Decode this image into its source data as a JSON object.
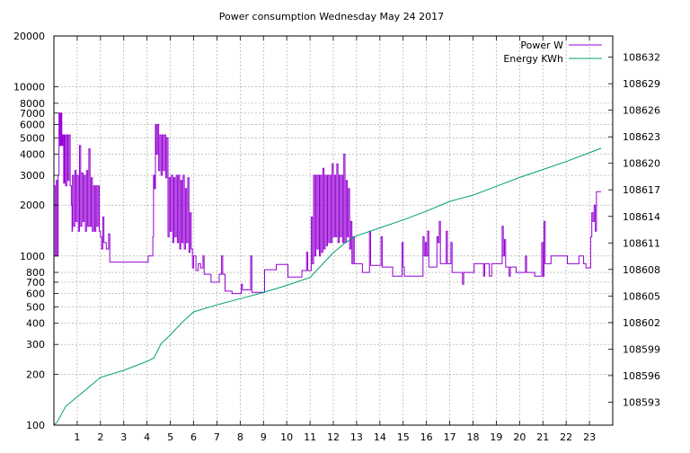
{
  "chart_data": {
    "type": "line",
    "title": "Power consumption Wednesday May 24 2017",
    "xlabel": "",
    "ylabel": "",
    "y2label": "",
    "xlim": [
      0,
      24
    ],
    "ylim": [
      100,
      20000
    ],
    "yscale": "log",
    "y2lim": [
      108590.4,
      108634.4
    ],
    "x_ticks": [
      1,
      2,
      3,
      4,
      5,
      6,
      7,
      8,
      9,
      10,
      11,
      12,
      13,
      14,
      15,
      16,
      17,
      18,
      19,
      20,
      21,
      22,
      23
    ],
    "y_ticks": [
      {
        "v": 100,
        "label": "100"
      },
      {
        "v": 200,
        "label": "200"
      },
      {
        "v": 300,
        "label": "300"
      },
      {
        "v": 400,
        "label": "400"
      },
      {
        "v": 500,
        "label": "500"
      },
      {
        "v": 600,
        "label": "600"
      },
      {
        "v": 700,
        "label": "700"
      },
      {
        "v": 800,
        "label": "800"
      },
      {
        "v": 1000,
        "label": "1000"
      },
      {
        "v": 2000,
        "label": "2000"
      },
      {
        "v": 3000,
        "label": "3000"
      },
      {
        "v": 4000,
        "label": "4000"
      },
      {
        "v": 5000,
        "label": "5000"
      },
      {
        "v": 6000,
        "label": "6000"
      },
      {
        "v": 7000,
        "label": "7000"
      },
      {
        "v": 8000,
        "label": "8000"
      },
      {
        "v": 10000,
        "label": "10000"
      },
      {
        "v": 20000,
        "label": "20000"
      }
    ],
    "y2_ticks": [
      108593,
      108596,
      108599,
      108602,
      108605,
      108608,
      108611,
      108614,
      108617,
      108620,
      108623,
      108626,
      108629,
      108632
    ],
    "grid": true,
    "legend_position": "top-right",
    "series": [
      {
        "name": "Power W",
        "color": "#9400d3",
        "axis": "left",
        "points": [
          [
            0,
            2600
          ],
          [
            0.05,
            1000
          ],
          [
            0.1,
            2800
          ],
          [
            0.15,
            1000
          ],
          [
            0.18,
            3000
          ],
          [
            0.22,
            7000
          ],
          [
            0.26,
            4500
          ],
          [
            0.3,
            7000
          ],
          [
            0.34,
            4500
          ],
          [
            0.38,
            5200
          ],
          [
            0.42,
            2700
          ],
          [
            0.46,
            5200
          ],
          [
            0.5,
            2600
          ],
          [
            0.55,
            5200
          ],
          [
            0.6,
            2800
          ],
          [
            0.65,
            5200
          ],
          [
            0.7,
            2600
          ],
          [
            0.75,
            2000
          ],
          [
            0.78,
            1400
          ],
          [
            0.8,
            3000
          ],
          [
            0.85,
            1500
          ],
          [
            0.9,
            3200
          ],
          [
            0.95,
            1600
          ],
          [
            1.0,
            3000
          ],
          [
            1.05,
            1400
          ],
          [
            1.1,
            4500
          ],
          [
            1.15,
            1500
          ],
          [
            1.2,
            3100
          ],
          [
            1.25,
            1600
          ],
          [
            1.3,
            3000
          ],
          [
            1.35,
            1400
          ],
          [
            1.4,
            3200
          ],
          [
            1.45,
            1500
          ],
          [
            1.5,
            4300
          ],
          [
            1.55,
            1500
          ],
          [
            1.6,
            2900
          ],
          [
            1.65,
            1400
          ],
          [
            1.7,
            2600
          ],
          [
            1.75,
            1400
          ],
          [
            1.8,
            2600
          ],
          [
            1.85,
            1500
          ],
          [
            1.9,
            2600
          ],
          [
            1.95,
            1400
          ],
          [
            2.0,
            1300
          ],
          [
            2.05,
            1100
          ],
          [
            2.1,
            1700
          ],
          [
            2.15,
            1200
          ],
          [
            2.25,
            1100
          ],
          [
            2.35,
            1350
          ],
          [
            2.4,
            920
          ],
          [
            4.0,
            920
          ],
          [
            4.05,
            1000
          ],
          [
            4.2,
            1000
          ],
          [
            4.25,
            1300
          ],
          [
            4.28,
            3000
          ],
          [
            4.32,
            2500
          ],
          [
            4.36,
            6000
          ],
          [
            4.4,
            4000
          ],
          [
            4.45,
            6000
          ],
          [
            4.5,
            3200
          ],
          [
            4.55,
            5200
          ],
          [
            4.6,
            3000
          ],
          [
            4.65,
            5200
          ],
          [
            4.7,
            3200
          ],
          [
            4.75,
            5200
          ],
          [
            4.8,
            2900
          ],
          [
            4.85,
            5000
          ],
          [
            4.9,
            1300
          ],
          [
            4.95,
            2900
          ],
          [
            5.0,
            1400
          ],
          [
            5.05,
            3000
          ],
          [
            5.1,
            1200
          ],
          [
            5.15,
            2900
          ],
          [
            5.2,
            1300
          ],
          [
            5.25,
            3000
          ],
          [
            5.3,
            1200
          ],
          [
            5.35,
            3000
          ],
          [
            5.4,
            1100
          ],
          [
            5.45,
            2800
          ],
          [
            5.5,
            1200
          ],
          [
            5.55,
            3000
          ],
          [
            5.6,
            1100
          ],
          [
            5.65,
            2500
          ],
          [
            5.7,
            1200
          ],
          [
            5.75,
            2900
          ],
          [
            5.8,
            1050
          ],
          [
            5.85,
            1800
          ],
          [
            5.9,
            1100
          ],
          [
            5.95,
            850
          ],
          [
            6.0,
            1000
          ],
          [
            6.1,
            820
          ],
          [
            6.2,
            900
          ],
          [
            6.3,
            850
          ],
          [
            6.4,
            1000
          ],
          [
            6.45,
            780
          ],
          [
            6.7,
            780
          ],
          [
            6.75,
            700
          ],
          [
            7.0,
            700
          ],
          [
            7.1,
            780
          ],
          [
            7.2,
            1000
          ],
          [
            7.25,
            780
          ],
          [
            7.35,
            620
          ],
          [
            7.6,
            620
          ],
          [
            7.65,
            600
          ],
          [
            8.0,
            600
          ],
          [
            8.05,
            680
          ],
          [
            8.1,
            630
          ],
          [
            8.4,
            630
          ],
          [
            8.45,
            1000
          ],
          [
            8.5,
            610
          ],
          [
            9.0,
            610
          ],
          [
            9.05,
            830
          ],
          [
            9.5,
            830
          ],
          [
            9.55,
            890
          ],
          [
            10.0,
            890
          ],
          [
            10.05,
            750
          ],
          [
            10.6,
            750
          ],
          [
            10.65,
            820
          ],
          [
            10.8,
            820
          ],
          [
            10.85,
            1050
          ],
          [
            10.9,
            820
          ],
          [
            11.0,
            820
          ],
          [
            11.05,
            1700
          ],
          [
            11.1,
            900
          ],
          [
            11.15,
            3000
          ],
          [
            11.2,
            1000
          ],
          [
            11.25,
            3000
          ],
          [
            11.3,
            1100
          ],
          [
            11.35,
            3000
          ],
          [
            11.4,
            1000
          ],
          [
            11.45,
            3000
          ],
          [
            11.5,
            1050
          ],
          [
            11.55,
            3300
          ],
          [
            11.6,
            1100
          ],
          [
            11.65,
            3000
          ],
          [
            11.7,
            1150
          ],
          [
            11.75,
            3000
          ],
          [
            11.8,
            1200
          ],
          [
            11.85,
            3000
          ],
          [
            11.9,
            1200
          ],
          [
            11.95,
            3500
          ],
          [
            12.0,
            1300
          ],
          [
            12.05,
            3000
          ],
          [
            12.1,
            1300
          ],
          [
            12.15,
            3500
          ],
          [
            12.2,
            1200
          ],
          [
            12.25,
            3000
          ],
          [
            12.3,
            1300
          ],
          [
            12.35,
            3000
          ],
          [
            12.4,
            1200
          ],
          [
            12.45,
            4000
          ],
          [
            12.5,
            1200
          ],
          [
            12.55,
            2800
          ],
          [
            12.6,
            1300
          ],
          [
            12.65,
            2500
          ],
          [
            12.7,
            1100
          ],
          [
            12.75,
            1600
          ],
          [
            12.8,
            900
          ],
          [
            12.85,
            1300
          ],
          [
            12.9,
            900
          ],
          [
            13.2,
            900
          ],
          [
            13.25,
            800
          ],
          [
            13.5,
            800
          ],
          [
            13.55,
            1400
          ],
          [
            13.6,
            880
          ],
          [
            14.0,
            880
          ],
          [
            14.05,
            1300
          ],
          [
            14.1,
            860
          ],
          [
            14.5,
            860
          ],
          [
            14.55,
            760
          ],
          [
            14.9,
            760
          ],
          [
            14.95,
            1200
          ],
          [
            15.0,
            860
          ],
          [
            15.05,
            760
          ],
          [
            15.8,
            760
          ],
          [
            15.85,
            1300
          ],
          [
            15.9,
            1000
          ],
          [
            15.95,
            1200
          ],
          [
            16.0,
            1000
          ],
          [
            16.05,
            1400
          ],
          [
            16.1,
            860
          ],
          [
            16.4,
            860
          ],
          [
            16.45,
            1300
          ],
          [
            16.5,
            1200
          ],
          [
            16.55,
            1600
          ],
          [
            16.6,
            900
          ],
          [
            16.8,
            900
          ],
          [
            16.85,
            1400
          ],
          [
            16.9,
            900
          ],
          [
            17.0,
            900
          ],
          [
            17.05,
            1200
          ],
          [
            17.1,
            800
          ],
          [
            17.5,
            800
          ],
          [
            17.55,
            680
          ],
          [
            17.6,
            800
          ],
          [
            18.0,
            800
          ],
          [
            18.05,
            900
          ],
          [
            18.4,
            900
          ],
          [
            18.45,
            760
          ],
          [
            18.5,
            900
          ],
          [
            18.6,
            900
          ],
          [
            18.7,
            760
          ],
          [
            18.8,
            900
          ],
          [
            19.2,
            900
          ],
          [
            19.25,
            1500
          ],
          [
            19.3,
            1000
          ],
          [
            19.35,
            1250
          ],
          [
            19.4,
            860
          ],
          [
            19.5,
            860
          ],
          [
            19.55,
            760
          ],
          [
            19.6,
            860
          ],
          [
            19.8,
            860
          ],
          [
            19.85,
            800
          ],
          [
            20.0,
            800
          ],
          [
            20.2,
            800
          ],
          [
            20.25,
            1000
          ],
          [
            20.3,
            800
          ],
          [
            20.6,
            800
          ],
          [
            20.65,
            760
          ],
          [
            20.9,
            760
          ],
          [
            20.95,
            1200
          ],
          [
            21.0,
            760
          ],
          [
            21.05,
            1600
          ],
          [
            21.1,
            900
          ],
          [
            21.3,
            900
          ],
          [
            21.35,
            1000
          ],
          [
            21.6,
            1000
          ],
          [
            21.65,
            1000
          ],
          [
            22.0,
            1000
          ],
          [
            22.05,
            900
          ],
          [
            22.5,
            900
          ],
          [
            22.55,
            1000
          ],
          [
            22.7,
            1000
          ],
          [
            22.75,
            900
          ],
          [
            22.8,
            900
          ],
          [
            22.85,
            850
          ],
          [
            23.0,
            850
          ],
          [
            23.05,
            1300
          ],
          [
            23.1,
            1800
          ],
          [
            23.15,
            1600
          ],
          [
            23.2,
            2000
          ],
          [
            23.25,
            1400
          ],
          [
            23.3,
            2400
          ],
          [
            23.5,
            2400
          ]
        ]
      },
      {
        "name": "Energy KWh",
        "color": "#009e73",
        "axis": "right",
        "points": [
          [
            0,
            108590.4
          ],
          [
            0.15,
            108590.8
          ],
          [
            0.5,
            108592.5
          ],
          [
            1,
            108593.6
          ],
          [
            1.5,
            108594.7
          ],
          [
            2,
            108595.8
          ],
          [
            3,
            108596.6
          ],
          [
            4,
            108597.6
          ],
          [
            4.3,
            108598.0
          ],
          [
            4.6,
            108599.6
          ],
          [
            5,
            108600.6
          ],
          [
            5.5,
            108602.0
          ],
          [
            6,
            108603.2
          ],
          [
            7,
            108604.0
          ],
          [
            8,
            108604.7
          ],
          [
            9,
            108605.4
          ],
          [
            10,
            108606.2
          ],
          [
            11,
            108607.1
          ],
          [
            11.5,
            108608.5
          ],
          [
            12,
            108609.9
          ],
          [
            12.5,
            108611.0
          ],
          [
            13,
            108611.8
          ],
          [
            14,
            108612.7
          ],
          [
            15,
            108613.6
          ],
          [
            16,
            108614.6
          ],
          [
            17,
            108615.7
          ],
          [
            18,
            108616.4
          ],
          [
            19,
            108617.4
          ],
          [
            20,
            108618.4
          ],
          [
            21,
            108619.3
          ],
          [
            22,
            108620.2
          ],
          [
            23,
            108621.2
          ],
          [
            23.5,
            108621.7
          ]
        ]
      }
    ]
  }
}
